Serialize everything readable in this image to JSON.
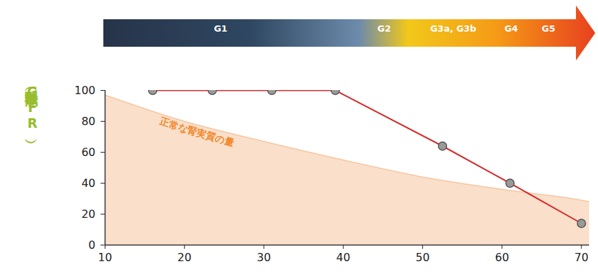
{
  "chart_data": {
    "type": "line",
    "y_label": "腎機能（GFR）",
    "xlim": [
      10,
      71
    ],
    "xticks": [
      10,
      20,
      30,
      40,
      50,
      60,
      70
    ],
    "ylim": [
      0,
      100
    ],
    "yticks": [
      0,
      20,
      40,
      60,
      80,
      100
    ],
    "grid": false,
    "stages": {
      "labels": [
        "G1",
        "G2",
        "G3a, G3b",
        "G4",
        "G5"
      ],
      "x": [
        24.6,
        45.2,
        53.9,
        61.2,
        65.9
      ]
    },
    "series": [
      {
        "name": "正常な腎実質の量",
        "type": "area",
        "color": "#f5b98a",
        "x": [
          10,
          20,
          30,
          40,
          50,
          60,
          70,
          71
        ],
        "values": [
          97,
          80,
          67,
          55,
          44,
          36,
          29,
          28
        ]
      },
      {
        "type": "line",
        "color": "#d42a2a",
        "marker": "circle",
        "x": [
          16,
          23.5,
          31,
          39,
          52.5,
          61,
          70
        ],
        "values": [
          100,
          100,
          100,
          100,
          64,
          40,
          14
        ]
      }
    ]
  }
}
